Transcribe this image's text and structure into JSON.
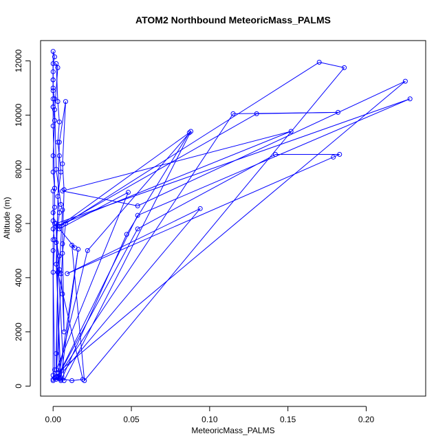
{
  "chart_data": {
    "type": "line",
    "title": "ATOM2 Northbound MeteoricMass_PALMS",
    "xlabel": "MeteoricMass_PALMS",
    "ylabel": "Altitude (m)",
    "xlim": [
      -0.008,
      0.238
    ],
    "ylim": [
      -370,
      12750
    ],
    "x_ticks": [
      0.0,
      0.05,
      0.1,
      0.15,
      0.2
    ],
    "x_tick_labels": [
      "0.00",
      "0.05",
      "0.10",
      "0.15",
      "0.20"
    ],
    "y_ticks": [
      0,
      2000,
      4000,
      6000,
      8000,
      10000,
      12000
    ],
    "y_tick_labels": [
      "0",
      "2000",
      "4000",
      "6000",
      "8000",
      "10000",
      "12000"
    ],
    "grid": false,
    "legend": "none",
    "series_color": "#0000ff",
    "marker": "open-circle",
    "series": [
      {
        "points": [
          [
            0.0,
            200
          ],
          [
            0.001,
            300
          ],
          [
            0.0,
            400
          ],
          [
            0.0,
            5000
          ],
          [
            0.0,
            5400
          ],
          [
            0.001,
            6000
          ],
          [
            0.0,
            6400
          ],
          [
            0.0,
            7200
          ],
          [
            0.001,
            7300
          ],
          [
            0.0,
            9600
          ],
          [
            0.0,
            10300
          ],
          [
            0.0,
            10600
          ],
          [
            0.0,
            11000
          ],
          [
            0.0,
            11300
          ],
          [
            0.0,
            11600
          ],
          [
            0.0,
            12350
          ],
          [
            0.001,
            12150
          ],
          [
            0.0,
            11900
          ],
          [
            0.0,
            11300
          ],
          [
            0.0,
            10900
          ],
          [
            0.001,
            10600
          ],
          [
            0.0,
            10300
          ],
          [
            0.001,
            9800
          ],
          [
            0.0,
            8500
          ],
          [
            0.0,
            7900
          ],
          [
            0.001,
            7300
          ],
          [
            0.001,
            6600
          ],
          [
            0.0,
            6100
          ],
          [
            0.0,
            5800
          ],
          [
            0.001,
            5400
          ],
          [
            0.0,
            4200
          ],
          [
            0.001,
            600
          ],
          [
            0.0,
            250
          ],
          [
            0.002,
            300
          ],
          [
            0.002,
            1200
          ],
          [
            0.003,
            4200
          ],
          [
            0.004,
            4800
          ],
          [
            0.002,
            5300
          ],
          [
            0.003,
            5900
          ],
          [
            0.004,
            6400
          ],
          [
            0.003,
            7000
          ],
          [
            0.005,
            7900
          ],
          [
            0.004,
            8500
          ],
          [
            0.003,
            9000
          ],
          [
            0.004,
            9750
          ],
          [
            0.003,
            10500
          ],
          [
            0.002,
            11900
          ],
          [
            0.003,
            11750
          ],
          [
            0.001,
            10200
          ],
          [
            0.002,
            8000
          ],
          [
            0.005,
            6700
          ],
          [
            0.006,
            6500
          ],
          [
            0.004,
            4300
          ],
          [
            0.005,
            4150
          ],
          [
            0.006,
            3400
          ],
          [
            0.007,
            2000
          ],
          [
            0.006,
            5250
          ],
          [
            0.007,
            7250
          ],
          [
            0.006,
            8200
          ],
          [
            0.008,
            10500
          ],
          [
            0.004,
            9000
          ],
          [
            0.002,
            4500
          ],
          [
            0.005,
            250
          ],
          [
            0.004,
            280
          ],
          [
            0.012,
            200
          ],
          [
            0.019,
            250
          ],
          [
            0.003,
            4200
          ],
          [
            0.002,
            350
          ],
          [
            0.006,
            4900
          ],
          [
            0.008,
            6000
          ],
          [
            0.17,
            11950
          ],
          [
            0.186,
            11750
          ],
          [
            0.02,
            200
          ],
          [
            0.012,
            5200
          ],
          [
            0.014,
            5100
          ],
          [
            0.004,
            5800
          ],
          [
            0.048,
            7150
          ],
          [
            0.002,
            600
          ],
          [
            0.002,
            250
          ],
          [
            0.115,
            10050
          ],
          [
            0.182,
            10100
          ],
          [
            0.13,
            10050
          ],
          [
            0.004,
            5900
          ],
          [
            0.087,
            9350
          ],
          [
            0.047,
            5600
          ],
          [
            0.005,
            200
          ],
          [
            0.005,
            300
          ],
          [
            0.016,
            5050
          ],
          [
            0.004,
            400
          ],
          [
            0.002,
            5900
          ],
          [
            0.152,
            9400
          ],
          [
            0.006,
            7200
          ],
          [
            0.054,
            6650
          ],
          [
            0.225,
            11250
          ],
          [
            0.003,
            500
          ],
          [
            0.022,
            5000
          ],
          [
            0.088,
            9400
          ],
          [
            0.007,
            200
          ],
          [
            0.002,
            6000
          ],
          [
            0.228,
            10600
          ],
          [
            0.054,
            6300
          ],
          [
            0.003,
            350
          ],
          [
            0.054,
            5800
          ],
          [
            0.142,
            8550
          ],
          [
            0.183,
            8550
          ],
          [
            0.179,
            8450
          ],
          [
            0.009,
            4150
          ],
          [
            0.094,
            6550
          ],
          [
            0.003,
            300
          ]
        ]
      }
    ]
  }
}
